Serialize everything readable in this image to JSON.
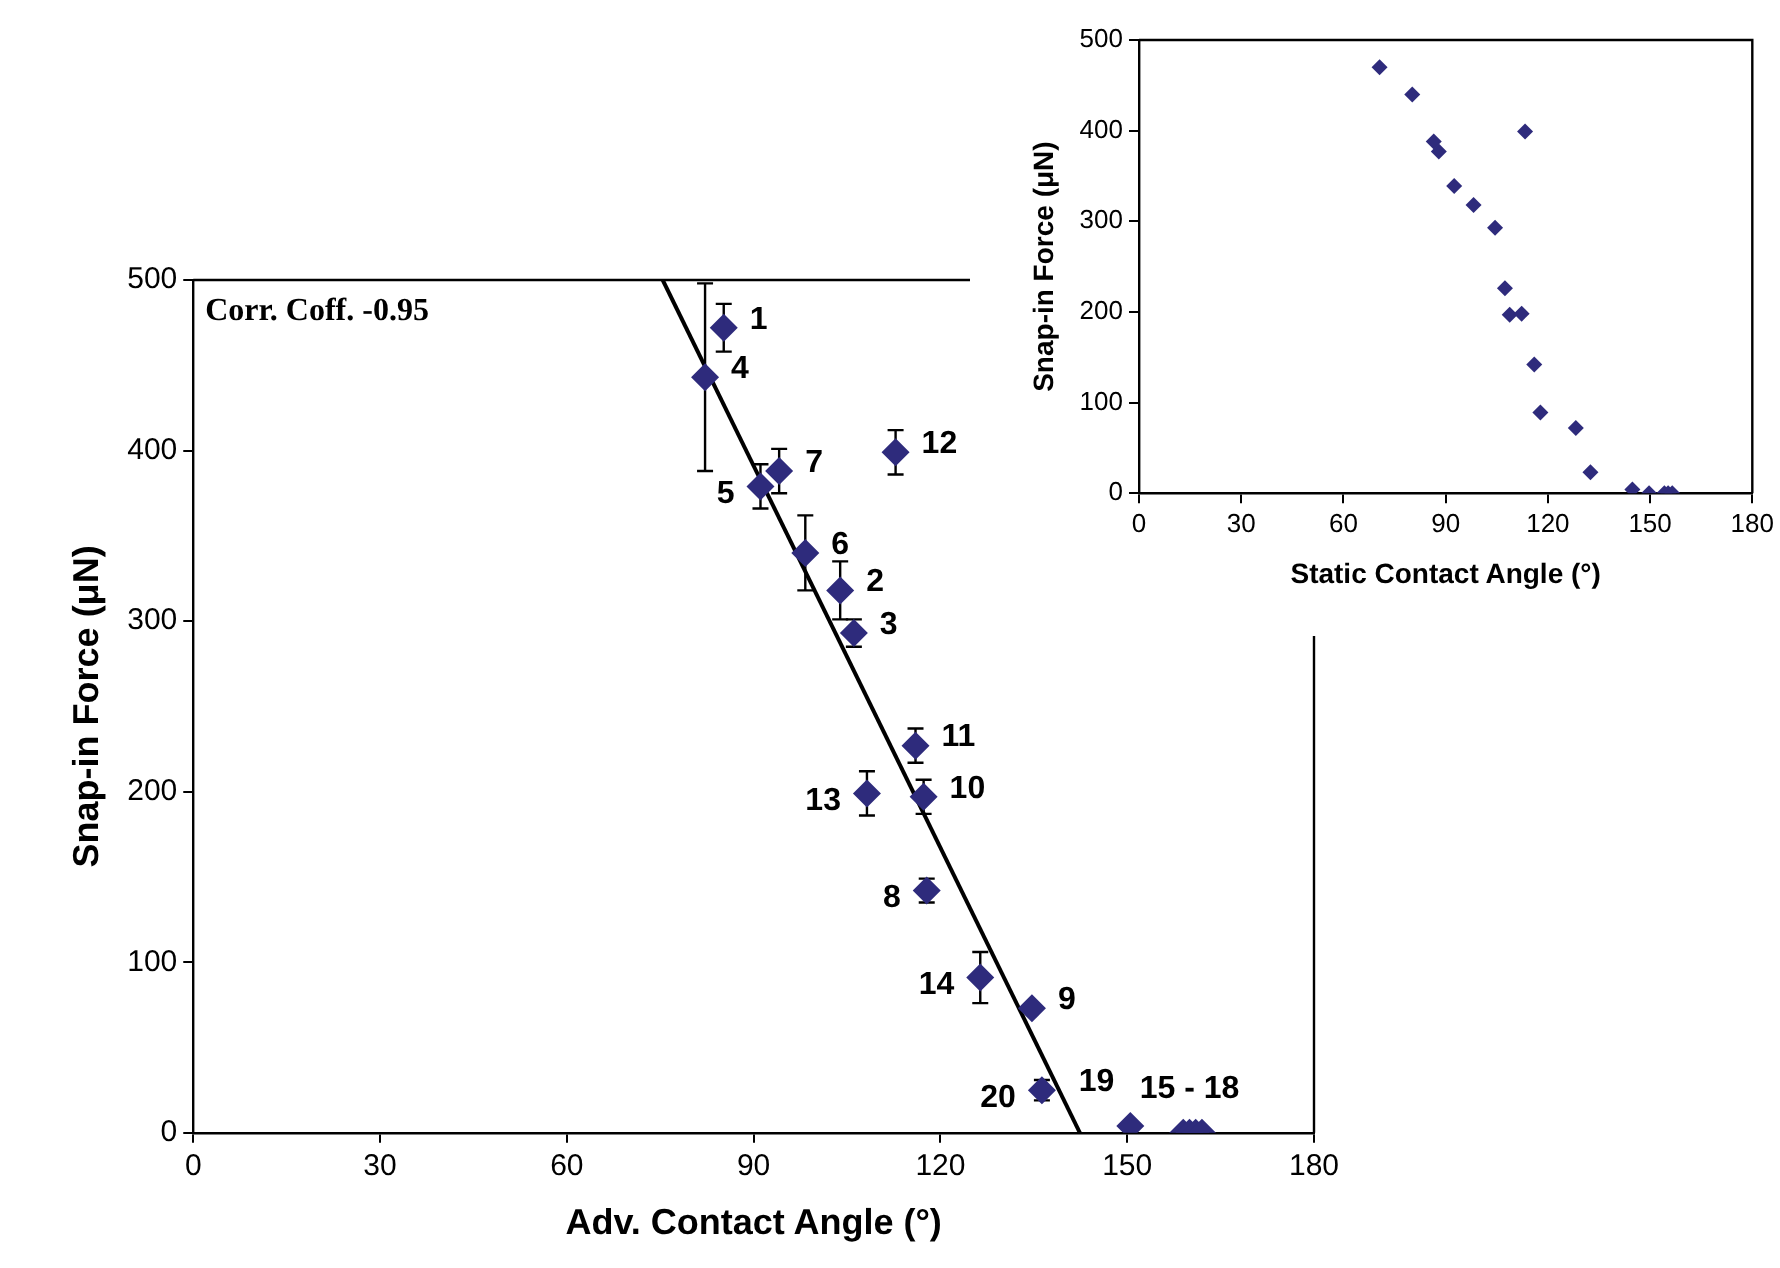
{
  "chart_data": [
    {
      "type": "scatter",
      "xlabel": "Adv. Contact Angle (°)",
      "ylabel": "Snap-in Force (μN)",
      "xlim": [
        0,
        180
      ],
      "xticks": [
        0,
        30,
        60,
        90,
        120,
        150,
        180
      ],
      "ylim": [
        0,
        500
      ],
      "yticks": [
        0,
        100,
        200,
        300,
        400,
        500
      ],
      "grid": false,
      "legend": false,
      "series": [
        {
          "color": "#2e2b7c",
          "marker": "diamond",
          "x": [
            85.2,
            103.9,
            106.1,
            82.2,
            91.1,
            98.3,
            94.1,
            117.8,
            134.7,
            117.3,
            116.0,
            112.8,
            108.2,
            126.4,
            159,
            160,
            161,
            162,
            150.5,
            136.3
          ],
          "values": [
            472,
            318,
            293,
            443,
            379,
            340,
            388,
            142,
            73,
            197,
            227,
            399,
            199,
            91,
            0,
            0,
            0,
            0,
            4,
            25
          ],
          "errors": [
            14,
            17,
            8,
            55,
            13,
            22,
            13,
            7,
            null,
            10,
            10,
            13,
            13,
            15,
            null,
            null,
            null,
            null,
            null,
            6
          ]
        },
        {
          "type": "line",
          "marker": "none",
          "color": "#000000",
          "x": [
            75.4,
            142.4
          ],
          "values": [
            500,
            0
          ]
        }
      ],
      "annotations": [
        "Corr. Coff. -0.95",
        {
          "text": "1",
          "x": 85.2,
          "y": 472
        },
        {
          "text": "2",
          "x": 103.9,
          "y": 318
        },
        {
          "text": "3",
          "x": 106.1,
          "y": 293
        },
        {
          "text": "4",
          "x": 82.2,
          "y": 443
        },
        {
          "text": "5",
          "x": 91.1,
          "y": 379
        },
        {
          "text": "6",
          "x": 98.3,
          "y": 340
        },
        {
          "text": "7",
          "x": 94.1,
          "y": 388
        },
        {
          "text": "8",
          "x": 117.8,
          "y": 142
        },
        {
          "text": "9",
          "x": 134.7,
          "y": 73
        },
        {
          "text": "10",
          "x": 117.3,
          "y": 197
        },
        {
          "text": "11",
          "x": 116.0,
          "y": 227
        },
        {
          "text": "12",
          "x": 112.8,
          "y": 399
        },
        {
          "text": "13",
          "x": 108.2,
          "y": 199
        },
        {
          "text": "14",
          "x": 126.4,
          "y": 91
        },
        {
          "text": "15 - 18",
          "x": 160,
          "y": 0
        },
        {
          "text": "19",
          "x": 150.5,
          "y": 4
        },
        {
          "text": "20",
          "x": 136.3,
          "y": 25
        }
      ]
    },
    {
      "type": "scatter",
      "xlabel": "Static Contact Angle (°)",
      "ylabel": "Snap-in Force (μN)",
      "xlim": [
        0,
        180
      ],
      "xticks": [
        0,
        30,
        60,
        90,
        120,
        150,
        180
      ],
      "ylim": [
        0,
        500
      ],
      "yticks": [
        0,
        100,
        200,
        300,
        400,
        500
      ],
      "grid": false,
      "legend": false,
      "marker": "diamond",
      "series": [
        {
          "color": "#2e2b7c",
          "x": [
            70.6,
            80.2,
            86.5,
            88.0,
            92.5,
            98.2,
            104.5,
            107.4,
            108.8,
            112.3,
            113.3,
            116.0,
            117.8,
            128.2,
            132.5,
            144.8,
            149.7,
            154.2,
            155.3,
            156.5
          ],
          "values": [
            470,
            440,
            388,
            377,
            339,
            318,
            293,
            226,
            197,
            198,
            399,
            142,
            89,
            72,
            23,
            4,
            0,
            0,
            0,
            0
          ]
        }
      ]
    }
  ]
}
